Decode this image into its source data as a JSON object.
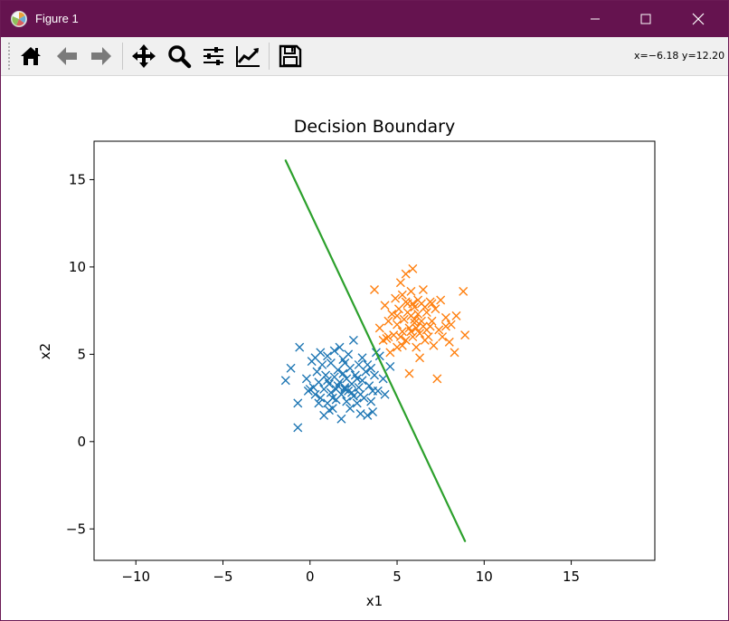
{
  "window": {
    "title": "Figure 1"
  },
  "toolbar": {
    "buttons": [
      "home-icon",
      "back-icon",
      "forward-icon",
      "pan-icon",
      "zoom-icon",
      "configure-icon",
      "edit-axis-icon",
      "save-icon"
    ],
    "coords_readout": "x=−6.18 y=12.20"
  },
  "chart_data": {
    "type": "scatter",
    "title": "Decision Boundary",
    "xlabel": "x1",
    "ylabel": "x2",
    "xlim": [
      -12.4,
      19.8
    ],
    "ylim": [
      -6.8,
      17.2
    ],
    "xticks": [
      -10,
      -5,
      0,
      5,
      10,
      15
    ],
    "xtick_labels": [
      "−10",
      "−5",
      "0",
      "5",
      "10",
      "15"
    ],
    "yticks": [
      -5,
      0,
      5,
      10,
      15
    ],
    "ytick_labels": [
      "−5",
      "0",
      "5",
      "10",
      "15"
    ],
    "grid": false,
    "colors": {
      "class0": "#1f77b4",
      "class1": "#ff7f0e",
      "boundary": "#2ca02c"
    },
    "series": [
      {
        "marker": "x",
        "color": "#1f77b4",
        "points": [
          [
            -0.6,
            5.4
          ],
          [
            -1.1,
            4.2
          ],
          [
            -1.4,
            3.5
          ],
          [
            -0.7,
            2.2
          ],
          [
            -0.7,
            0.8
          ],
          [
            -0.2,
            3.6
          ],
          [
            -0.1,
            2.9
          ],
          [
            0.1,
            4.6
          ],
          [
            0.2,
            3.1
          ],
          [
            0.3,
            2.7
          ],
          [
            0.4,
            4.0
          ],
          [
            0.5,
            3.4
          ],
          [
            0.6,
            2.5
          ],
          [
            0.6,
            5.1
          ],
          [
            0.7,
            4.4
          ],
          [
            0.8,
            3.0
          ],
          [
            0.8,
            1.5
          ],
          [
            0.9,
            3.8
          ],
          [
            1.0,
            2.2
          ],
          [
            1.0,
            4.9
          ],
          [
            1.1,
            3.3
          ],
          [
            1.2,
            4.5
          ],
          [
            1.2,
            2.8
          ],
          [
            1.3,
            1.9
          ],
          [
            1.4,
            3.7
          ],
          [
            1.4,
            5.2
          ],
          [
            1.5,
            3.0
          ],
          [
            1.5,
            2.4
          ],
          [
            1.6,
            4.1
          ],
          [
            1.7,
            3.4
          ],
          [
            1.7,
            5.4
          ],
          [
            1.8,
            2.7
          ],
          [
            1.8,
            1.3
          ],
          [
            1.9,
            3.9
          ],
          [
            2.0,
            3.1
          ],
          [
            2.0,
            4.5
          ],
          [
            2.1,
            2.3
          ],
          [
            2.1,
            3.6
          ],
          [
            2.2,
            2.9
          ],
          [
            2.3,
            4.2
          ],
          [
            2.3,
            1.9
          ],
          [
            2.4,
            3.3
          ],
          [
            2.5,
            2.6
          ],
          [
            2.5,
            5.8
          ],
          [
            2.6,
            3.8
          ],
          [
            2.7,
            2.2
          ],
          [
            2.8,
            4.4
          ],
          [
            2.8,
            3.1
          ],
          [
            2.9,
            1.6
          ],
          [
            3.0,
            3.5
          ],
          [
            3.0,
            4.8
          ],
          [
            3.1,
            2.5
          ],
          [
            3.2,
            4.0
          ],
          [
            3.3,
            1.5
          ],
          [
            3.4,
            3.2
          ],
          [
            3.5,
            2.3
          ],
          [
            3.5,
            4.2
          ],
          [
            3.6,
            1.7
          ],
          [
            3.7,
            3.8
          ],
          [
            3.8,
            5.1
          ],
          [
            3.9,
            2.9
          ],
          [
            4.0,
            4.9
          ],
          [
            4.2,
            3.6
          ],
          [
            4.3,
            2.7
          ],
          [
            4.6,
            4.3
          ],
          [
            0.0,
            3.0
          ],
          [
            1.0,
            3.5
          ],
          [
            2.0,
            3.0
          ],
          [
            1.6,
            3.2
          ],
          [
            2.4,
            2.8
          ],
          [
            1.3,
            2.5
          ],
          [
            2.7,
            3.6
          ],
          [
            0.5,
            2.2
          ],
          [
            3.3,
            4.4
          ],
          [
            1.9,
            4.7
          ],
          [
            2.2,
            5.0
          ],
          [
            0.3,
            4.8
          ],
          [
            3.6,
            2.9
          ],
          [
            1.1,
            1.8
          ],
          [
            2.9,
            2.7
          ]
        ]
      },
      {
        "marker": "x",
        "color": "#ff7f0e",
        "points": [
          [
            3.7,
            8.7
          ],
          [
            4.0,
            6.5
          ],
          [
            4.3,
            7.8
          ],
          [
            4.4,
            5.9
          ],
          [
            4.5,
            6.9
          ],
          [
            4.6,
            5.1
          ],
          [
            4.7,
            7.3
          ],
          [
            4.8,
            6.1
          ],
          [
            4.9,
            8.2
          ],
          [
            5.0,
            6.7
          ],
          [
            5.0,
            5.4
          ],
          [
            5.1,
            7.6
          ],
          [
            5.2,
            9.1
          ],
          [
            5.3,
            6.3
          ],
          [
            5.3,
            8.4
          ],
          [
            5.4,
            7.0
          ],
          [
            5.5,
            5.8
          ],
          [
            5.5,
            9.6
          ],
          [
            5.6,
            7.9
          ],
          [
            5.7,
            6.5
          ],
          [
            5.7,
            3.9
          ],
          [
            5.8,
            8.6
          ],
          [
            5.8,
            7.2
          ],
          [
            5.9,
            6.0
          ],
          [
            5.9,
            9.9
          ],
          [
            6.0,
            7.7
          ],
          [
            6.0,
            6.8
          ],
          [
            6.1,
            5.4
          ],
          [
            6.2,
            8.1
          ],
          [
            6.2,
            7.3
          ],
          [
            6.3,
            6.2
          ],
          [
            6.3,
            4.8
          ],
          [
            6.4,
            7.9
          ],
          [
            6.5,
            6.6
          ],
          [
            6.5,
            8.7
          ],
          [
            6.6,
            5.8
          ],
          [
            6.7,
            7.4
          ],
          [
            6.8,
            6.0
          ],
          [
            6.9,
            8.0
          ],
          [
            7.0,
            6.9
          ],
          [
            7.1,
            5.5
          ],
          [
            7.2,
            7.6
          ],
          [
            7.3,
            3.6
          ],
          [
            7.4,
            6.4
          ],
          [
            7.5,
            8.1
          ],
          [
            7.6,
            6.0
          ],
          [
            7.8,
            7.1
          ],
          [
            8.0,
            5.7
          ],
          [
            8.1,
            6.7
          ],
          [
            8.3,
            5.1
          ],
          [
            8.4,
            7.2
          ],
          [
            8.8,
            8.6
          ],
          [
            8.9,
            6.1
          ],
          [
            5.6,
            7.4
          ],
          [
            6.0,
            7.0
          ],
          [
            5.8,
            6.3
          ],
          [
            6.4,
            6.9
          ],
          [
            5.2,
            6.0
          ],
          [
            6.7,
            6.4
          ],
          [
            5.9,
            7.9
          ],
          [
            6.1,
            6.5
          ],
          [
            5.5,
            8.0
          ],
          [
            6.6,
            7.7
          ],
          [
            5.0,
            7.2
          ],
          [
            7.0,
            7.9
          ],
          [
            4.5,
            6.0
          ],
          [
            5.3,
            5.5
          ],
          [
            6.9,
            6.6
          ],
          [
            4.2,
            5.8
          ],
          [
            7.8,
            6.6
          ]
        ]
      },
      {
        "type": "line",
        "color": "#2ca02c",
        "points": [
          [
            -1.4,
            16.1
          ],
          [
            8.9,
            -5.7
          ]
        ]
      }
    ]
  }
}
